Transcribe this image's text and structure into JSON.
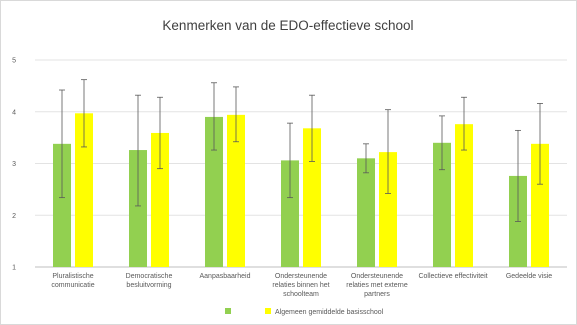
{
  "chart_data": {
    "type": "bar",
    "title": "Kenmerken van de EDO-effectieve school",
    "xlabel": "",
    "ylabel": "",
    "ylim": [
      1,
      5
    ],
    "yticks": [
      "1",
      "2",
      "3",
      "4",
      "5"
    ],
    "grid": true,
    "legend_position": "bottom",
    "categories": [
      [
        "Pluralistische",
        "communicatie"
      ],
      [
        "Democratische",
        "besluitvorming"
      ],
      [
        "Aanpasbaarheid"
      ],
      [
        "Ondersteunende",
        "relaties binnen het",
        "schoolteam"
      ],
      [
        "Ondersteunende",
        "relaties met externe",
        "partners"
      ],
      [
        "Collectieve effectiviteit"
      ],
      [
        "Gedeelde visie"
      ]
    ],
    "series": [
      {
        "name": "",
        "color": "#92d050",
        "values": [
          3.38,
          3.26,
          3.9,
          3.06,
          3.1,
          3.4,
          2.76
        ],
        "error_low": [
          2.34,
          2.18,
          3.26,
          2.34,
          2.82,
          2.88,
          1.88
        ],
        "error_high": [
          4.42,
          4.32,
          4.56,
          3.78,
          3.38,
          3.92,
          3.64
        ]
      },
      {
        "name": "Algemeen gemiddelde basisschool",
        "color": "#ffff00",
        "values": [
          3.97,
          3.59,
          3.94,
          3.68,
          3.22,
          3.76,
          3.38
        ],
        "error_low": [
          3.32,
          2.9,
          3.42,
          3.04,
          2.42,
          3.26,
          2.6
        ],
        "error_high": [
          4.62,
          4.28,
          4.48,
          4.32,
          4.04,
          4.28,
          4.16
        ]
      }
    ]
  }
}
